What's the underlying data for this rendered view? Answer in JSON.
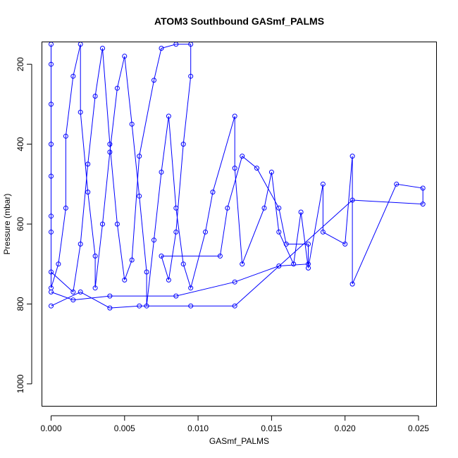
{
  "chart_data": {
    "type": "scatter",
    "title": "ATOM3 Southbound GASmf_PALMS",
    "xlabel": "GASmf_PALMS",
    "ylabel": "Pressure (mbar)",
    "xlim": [
      -0.0006,
      0.0262
    ],
    "ylim": [
      1055,
      145
    ],
    "y_reversed": true,
    "x_ticks": [
      "0.000",
      "0.005",
      "0.010",
      "0.015",
      "0.020",
      "0.025"
    ],
    "x_tick_values": [
      0,
      0.005,
      0.01,
      0.015,
      0.02,
      0.025
    ],
    "y_ticks": [
      "200",
      "400",
      "600",
      "800",
      "1000"
    ],
    "y_tick_values": [
      200,
      400,
      600,
      800,
      1000
    ],
    "point_color": "#0000ff",
    "line_color": "#0000ff",
    "marker": "open-circle",
    "connected": true,
    "series": [
      {
        "points": [
          [
            0.0,
            150
          ],
          [
            0.0,
            300
          ],
          [
            0.0,
            480
          ],
          [
            0.0,
            620
          ],
          [
            0.0,
            760
          ],
          [
            0.0005,
            700
          ],
          [
            0.001,
            560
          ],
          [
            0.001,
            380
          ],
          [
            0.0015,
            230
          ],
          [
            0.002,
            150
          ],
          [
            0.002,
            320
          ],
          [
            0.0025,
            520
          ],
          [
            0.003,
            680
          ],
          [
            0.003,
            760
          ],
          [
            0.0035,
            600
          ],
          [
            0.004,
            420
          ],
          [
            0.0045,
            260
          ],
          [
            0.005,
            180
          ],
          [
            0.0055,
            350
          ],
          [
            0.006,
            530
          ],
          [
            0.0065,
            720
          ],
          [
            0.0065,
            805
          ],
          [
            0.007,
            640
          ],
          [
            0.0075,
            470
          ],
          [
            0.008,
            330
          ],
          [
            0.0085,
            560
          ],
          [
            0.009,
            700
          ],
          [
            0.0095,
            760
          ],
          [
            0.0105,
            620
          ],
          [
            0.011,
            520
          ],
          [
            0.0125,
            330
          ],
          [
            0.0125,
            460
          ],
          [
            0.013,
            700
          ],
          [
            0.0145,
            560
          ],
          [
            0.015,
            470
          ],
          [
            0.0155,
            620
          ],
          [
            0.0165,
            700
          ],
          [
            0.017,
            570
          ],
          [
            0.0175,
            710
          ],
          [
            0.0185,
            500
          ],
          [
            0.0185,
            620
          ],
          [
            0.02,
            650
          ],
          [
            0.0205,
            430
          ],
          [
            0.0205,
            750
          ],
          [
            0.0235,
            500
          ],
          [
            0.0253,
            510
          ],
          [
            0.0253,
            550
          ],
          [
            0.0205,
            540
          ],
          [
            0.0125,
            805
          ],
          [
            0.0095,
            805
          ],
          [
            0.006,
            805
          ],
          [
            0.004,
            810
          ],
          [
            0.002,
            770
          ],
          [
            0.0,
            805
          ]
        ]
      },
      {
        "points": [
          [
            0.0,
            200
          ],
          [
            0.0,
            400
          ],
          [
            0.0,
            580
          ],
          [
            0.0,
            720
          ],
          [
            0.0015,
            770
          ],
          [
            0.002,
            650
          ],
          [
            0.0025,
            450
          ],
          [
            0.003,
            280
          ],
          [
            0.0035,
            160
          ],
          [
            0.004,
            400
          ],
          [
            0.0045,
            600
          ],
          [
            0.005,
            740
          ],
          [
            0.0055,
            690
          ],
          [
            0.006,
            430
          ],
          [
            0.007,
            240
          ],
          [
            0.0075,
            160
          ],
          [
            0.0085,
            150
          ],
          [
            0.0095,
            150
          ],
          [
            0.0095,
            230
          ],
          [
            0.009,
            400
          ],
          [
            0.0085,
            620
          ],
          [
            0.008,
            740
          ],
          [
            0.0075,
            680
          ],
          [
            0.0115,
            680
          ],
          [
            0.012,
            560
          ],
          [
            0.013,
            430
          ],
          [
            0.014,
            460
          ],
          [
            0.0155,
            560
          ],
          [
            0.016,
            650
          ],
          [
            0.0175,
            650
          ],
          [
            0.0175,
            700
          ],
          [
            0.0155,
            705
          ],
          [
            0.0125,
            745
          ],
          [
            0.0085,
            780
          ],
          [
            0.004,
            780
          ],
          [
            0.0015,
            790
          ],
          [
            0.0,
            770
          ]
        ]
      }
    ]
  }
}
